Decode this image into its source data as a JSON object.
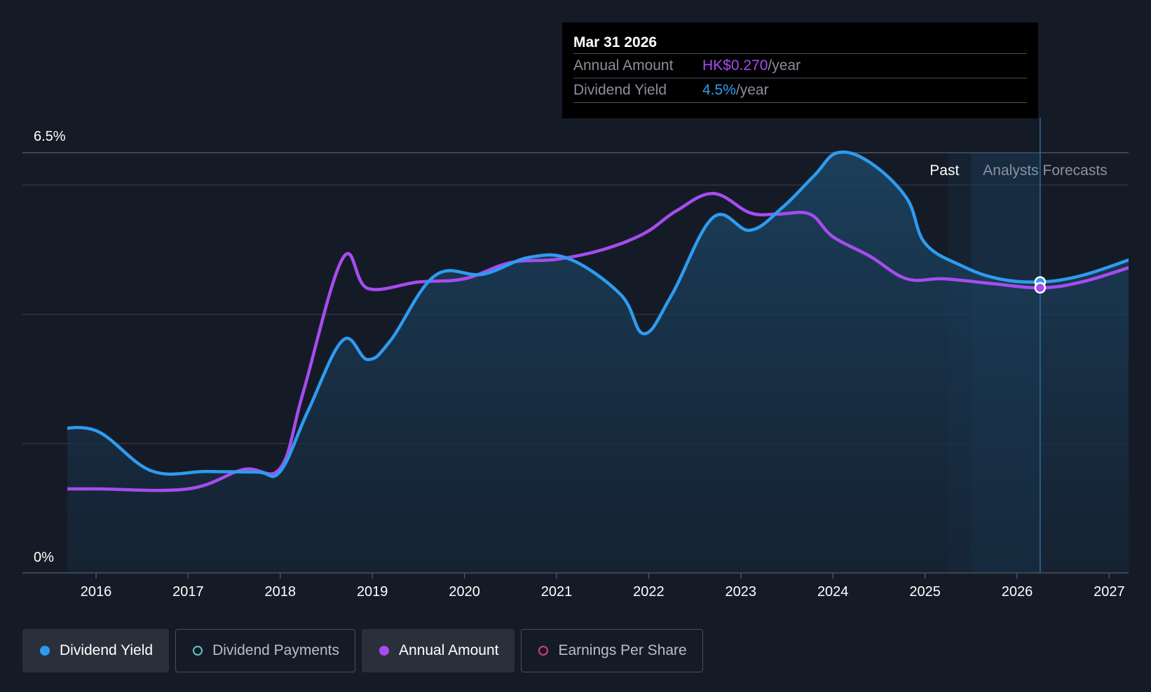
{
  "chart_data": {
    "type": "line",
    "title": "",
    "xlabel": "",
    "ylabel": "",
    "ylim": [
      0,
      6.5
    ],
    "y_tick_labels": [
      "6.5%",
      "0%"
    ],
    "x_tick_labels": [
      "2016",
      "2017",
      "2018",
      "2019",
      "2020",
      "2021",
      "2022",
      "2023",
      "2024",
      "2025",
      "2026",
      "2027"
    ],
    "xlim": [
      2015.7,
      2027.23
    ],
    "grid": true,
    "legend": "bottom",
    "regions": {
      "past_label": "Past",
      "forecast_label": "Analysts Forecasts",
      "past_end": 2025.5
    },
    "series": [
      {
        "name": "Dividend Yield",
        "color": "#2d9cf0",
        "filled": true,
        "points": [
          [
            2015.5,
            2.2
          ],
          [
            2016.0,
            2.2
          ],
          [
            2016.6,
            1.58
          ],
          [
            2017.2,
            1.57
          ],
          [
            2017.75,
            1.56
          ],
          [
            2018.0,
            1.57
          ],
          [
            2018.3,
            2.5
          ],
          [
            2018.68,
            3.6
          ],
          [
            2018.95,
            3.3
          ],
          [
            2019.2,
            3.6
          ],
          [
            2019.68,
            4.6
          ],
          [
            2020.2,
            4.62
          ],
          [
            2020.7,
            4.88
          ],
          [
            2021.15,
            4.85
          ],
          [
            2021.7,
            4.3
          ],
          [
            2021.95,
            3.7
          ],
          [
            2022.25,
            4.3
          ],
          [
            2022.7,
            5.5
          ],
          [
            2023.1,
            5.3
          ],
          [
            2023.45,
            5.65
          ],
          [
            2023.8,
            6.15
          ],
          [
            2024.05,
            6.5
          ],
          [
            2024.4,
            6.35
          ],
          [
            2024.8,
            5.8
          ],
          [
            2025.0,
            5.1
          ],
          [
            2025.4,
            4.75
          ],
          [
            2025.8,
            4.55
          ],
          [
            2026.25,
            4.5
          ],
          [
            2026.7,
            4.6
          ],
          [
            2027.23,
            4.85
          ]
        ]
      },
      {
        "name": "Annual Amount",
        "color": "#a64cf0",
        "filled": false,
        "points": [
          [
            2015.5,
            1.3
          ],
          [
            2016.0,
            1.3
          ],
          [
            2017.0,
            1.3
          ],
          [
            2017.6,
            1.6
          ],
          [
            2018.0,
            1.62
          ],
          [
            2018.25,
            2.8
          ],
          [
            2018.68,
            4.87
          ],
          [
            2018.95,
            4.4
          ],
          [
            2019.5,
            4.5
          ],
          [
            2020.0,
            4.55
          ],
          [
            2020.5,
            4.8
          ],
          [
            2021.0,
            4.85
          ],
          [
            2021.5,
            5.0
          ],
          [
            2021.95,
            5.25
          ],
          [
            2022.3,
            5.6
          ],
          [
            2022.7,
            5.87
          ],
          [
            2023.1,
            5.57
          ],
          [
            2023.4,
            5.55
          ],
          [
            2023.75,
            5.55
          ],
          [
            2024.0,
            5.2
          ],
          [
            2024.4,
            4.9
          ],
          [
            2024.8,
            4.55
          ],
          [
            2025.2,
            4.55
          ],
          [
            2025.7,
            4.48
          ],
          [
            2026.25,
            4.41
          ],
          [
            2026.7,
            4.5
          ],
          [
            2027.23,
            4.73
          ]
        ]
      }
    ],
    "tooltip": {
      "x": 2026.25,
      "date": "Mar 31 2026",
      "rows": [
        {
          "label": "Annual Amount",
          "value": "HK$0.270",
          "unit": "/year",
          "color": "#a64cf0"
        },
        {
          "label": "Dividend Yield",
          "value": "4.5%",
          "unit": "/year",
          "color": "#2d9cf0"
        }
      ]
    }
  },
  "legend": [
    {
      "label": "Dividend Yield",
      "active": true,
      "color": "#2d9cf0",
      "hollow": false
    },
    {
      "label": "Dividend Payments",
      "active": false,
      "color": "#5ec8c0",
      "hollow": true
    },
    {
      "label": "Annual Amount",
      "active": true,
      "color": "#a64cf0",
      "hollow": false
    },
    {
      "label": "Earnings Per Share",
      "active": false,
      "color": "#d0407a",
      "hollow": true
    }
  ]
}
